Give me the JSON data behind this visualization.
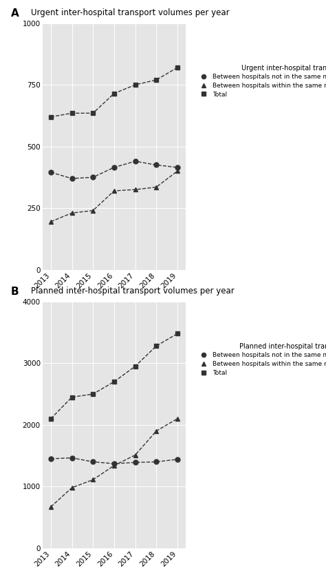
{
  "years": [
    2013,
    2014,
    2015,
    2016,
    2017,
    2018,
    2019
  ],
  "urgent": {
    "title": "Urgent inter-hospital transport volumes per year",
    "legend_title": "Urgent inter-hospital transports",
    "total": [
      620,
      635,
      635,
      715,
      750,
      770,
      820
    ],
    "not_same": [
      395,
      370,
      375,
      415,
      440,
      425,
      415
    ],
    "same": [
      195,
      230,
      240,
      320,
      325,
      335,
      400
    ],
    "ylim": [
      0,
      1000
    ],
    "yticks": [
      0,
      250,
      500,
      750,
      1000
    ]
  },
  "planned": {
    "title": "Planned inter-hospital transport volumes per year",
    "legend_title": "Planned inter-hospital transports",
    "total": [
      2100,
      2450,
      2500,
      2700,
      2950,
      3280,
      3480
    ],
    "not_same": [
      1450,
      1465,
      1400,
      1370,
      1390,
      1400,
      1440
    ],
    "same": [
      670,
      980,
      1110,
      1340,
      1510,
      1900,
      2100
    ],
    "ylim": [
      0,
      4000
    ],
    "yticks": [
      0,
      1000,
      2000,
      3000,
      4000
    ]
  },
  "label_not_same": "Between hospitals not in the same multi-hospital system",
  "label_same": "Between hospitals within the same multi-hospital system",
  "label_total": "Total",
  "bg_color": "#e5e5e5",
  "line_color": "#333333",
  "marker_circle": "o",
  "marker_triangle": "^",
  "marker_square": "s",
  "markersize": 5,
  "linewidth": 1.0,
  "linestyle": "--",
  "panel_A": "A",
  "panel_B": "B"
}
